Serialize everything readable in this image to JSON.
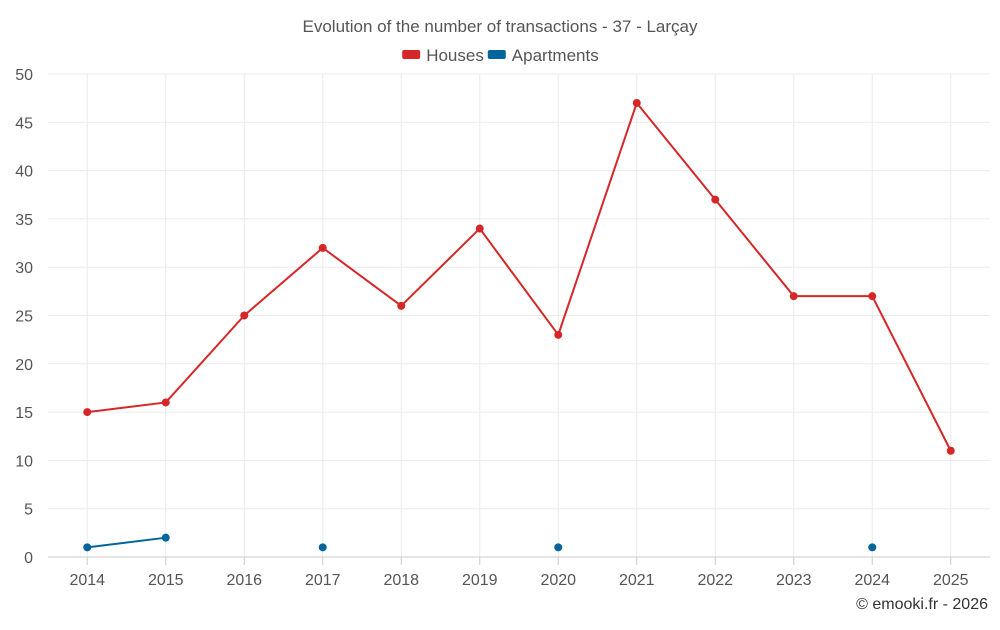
{
  "chart_data": {
    "type": "line",
    "title": "Evolution of the number of transactions - 37 - Larçay",
    "categories": [
      "2014",
      "2015",
      "2016",
      "2017",
      "2018",
      "2019",
      "2020",
      "2021",
      "2022",
      "2023",
      "2024",
      "2025"
    ],
    "series": [
      {
        "name": "Houses",
        "color": "#d62728",
        "values": [
          15,
          16,
          25,
          32,
          26,
          34,
          23,
          47,
          37,
          27,
          27,
          11
        ]
      },
      {
        "name": "Apartments",
        "color": "#03659c",
        "values": [
          1,
          2,
          null,
          1,
          null,
          null,
          1,
          null,
          null,
          null,
          1,
          null
        ]
      }
    ],
    "ylim": [
      0,
      50
    ],
    "yticks": [
      0,
      5,
      10,
      15,
      20,
      25,
      30,
      35,
      40,
      45,
      50
    ],
    "ytick_labels": [
      "0",
      "5",
      "10",
      "15",
      "20",
      "25",
      "30",
      "35",
      "40",
      "45",
      "50"
    ],
    "grid": true,
    "legend_position": "top-center",
    "xlabel": "",
    "ylabel": ""
  },
  "credit": "© emooki.fr - 2026"
}
